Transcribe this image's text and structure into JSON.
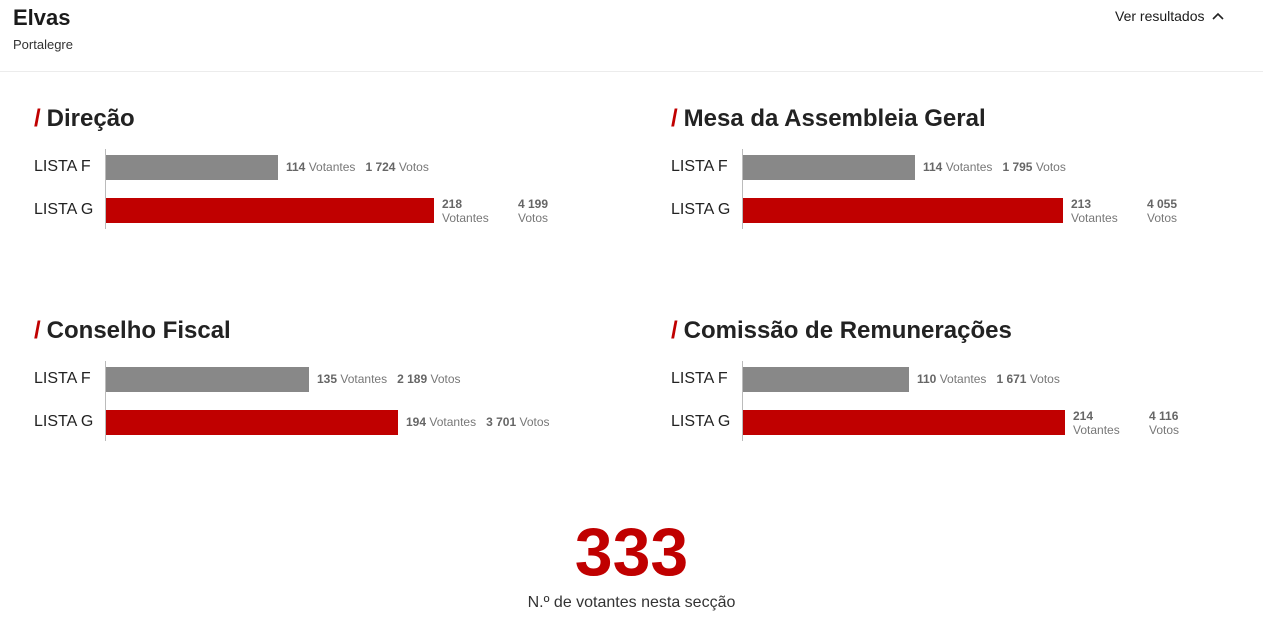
{
  "header": {
    "title": "Elvas",
    "subtitle": "Portalegre",
    "toggle_label": "Ver resultados",
    "toggle_icon": "chevron-up-icon"
  },
  "colors": {
    "lista_f": "#888888",
    "lista_g": "#c00000",
    "accent": "#c00000"
  },
  "chart_data": [
    {
      "type": "bar",
      "title": "Direção",
      "categories": [
        "LISTA F",
        "LISTA G"
      ],
      "series": [
        {
          "name": "Votantes",
          "values": [
            114,
            218
          ]
        },
        {
          "name": "Votos",
          "values": [
            1724,
            4199
          ]
        }
      ],
      "value_labels": [
        {
          "votantes": "114",
          "votos": "1 724"
        },
        {
          "votantes": "218",
          "votos": "4 199"
        }
      ]
    },
    {
      "type": "bar",
      "title": "Mesa da Assembleia Geral",
      "categories": [
        "LISTA F",
        "LISTA G"
      ],
      "series": [
        {
          "name": "Votantes",
          "values": [
            114,
            213
          ]
        },
        {
          "name": "Votos",
          "values": [
            1795,
            4055
          ]
        }
      ],
      "value_labels": [
        {
          "votantes": "114",
          "votos": "1 795"
        },
        {
          "votantes": "213",
          "votos": "4 055"
        }
      ]
    },
    {
      "type": "bar",
      "title": "Conselho Fiscal",
      "categories": [
        "LISTA F",
        "LISTA G"
      ],
      "series": [
        {
          "name": "Votantes",
          "values": [
            135,
            194
          ]
        },
        {
          "name": "Votos",
          "values": [
            2189,
            3701
          ]
        }
      ],
      "value_labels": [
        {
          "votantes": "135",
          "votos": "2 189"
        },
        {
          "votantes": "194",
          "votos": "3 701"
        }
      ]
    },
    {
      "type": "bar",
      "title": "Comissão de Remunerações",
      "categories": [
        "LISTA F",
        "LISTA G"
      ],
      "series": [
        {
          "name": "Votantes",
          "values": [
            110,
            214
          ]
        },
        {
          "name": "Votos",
          "values": [
            1671,
            4116
          ]
        }
      ],
      "value_labels": [
        {
          "votantes": "110",
          "votos": "1 671"
        },
        {
          "votantes": "214",
          "votos": "4 116"
        }
      ]
    }
  ],
  "unit_votantes": "Votantes",
  "unit_votos": "Votos",
  "total": {
    "value": "333",
    "label": "N.º de votantes nesta secção"
  }
}
